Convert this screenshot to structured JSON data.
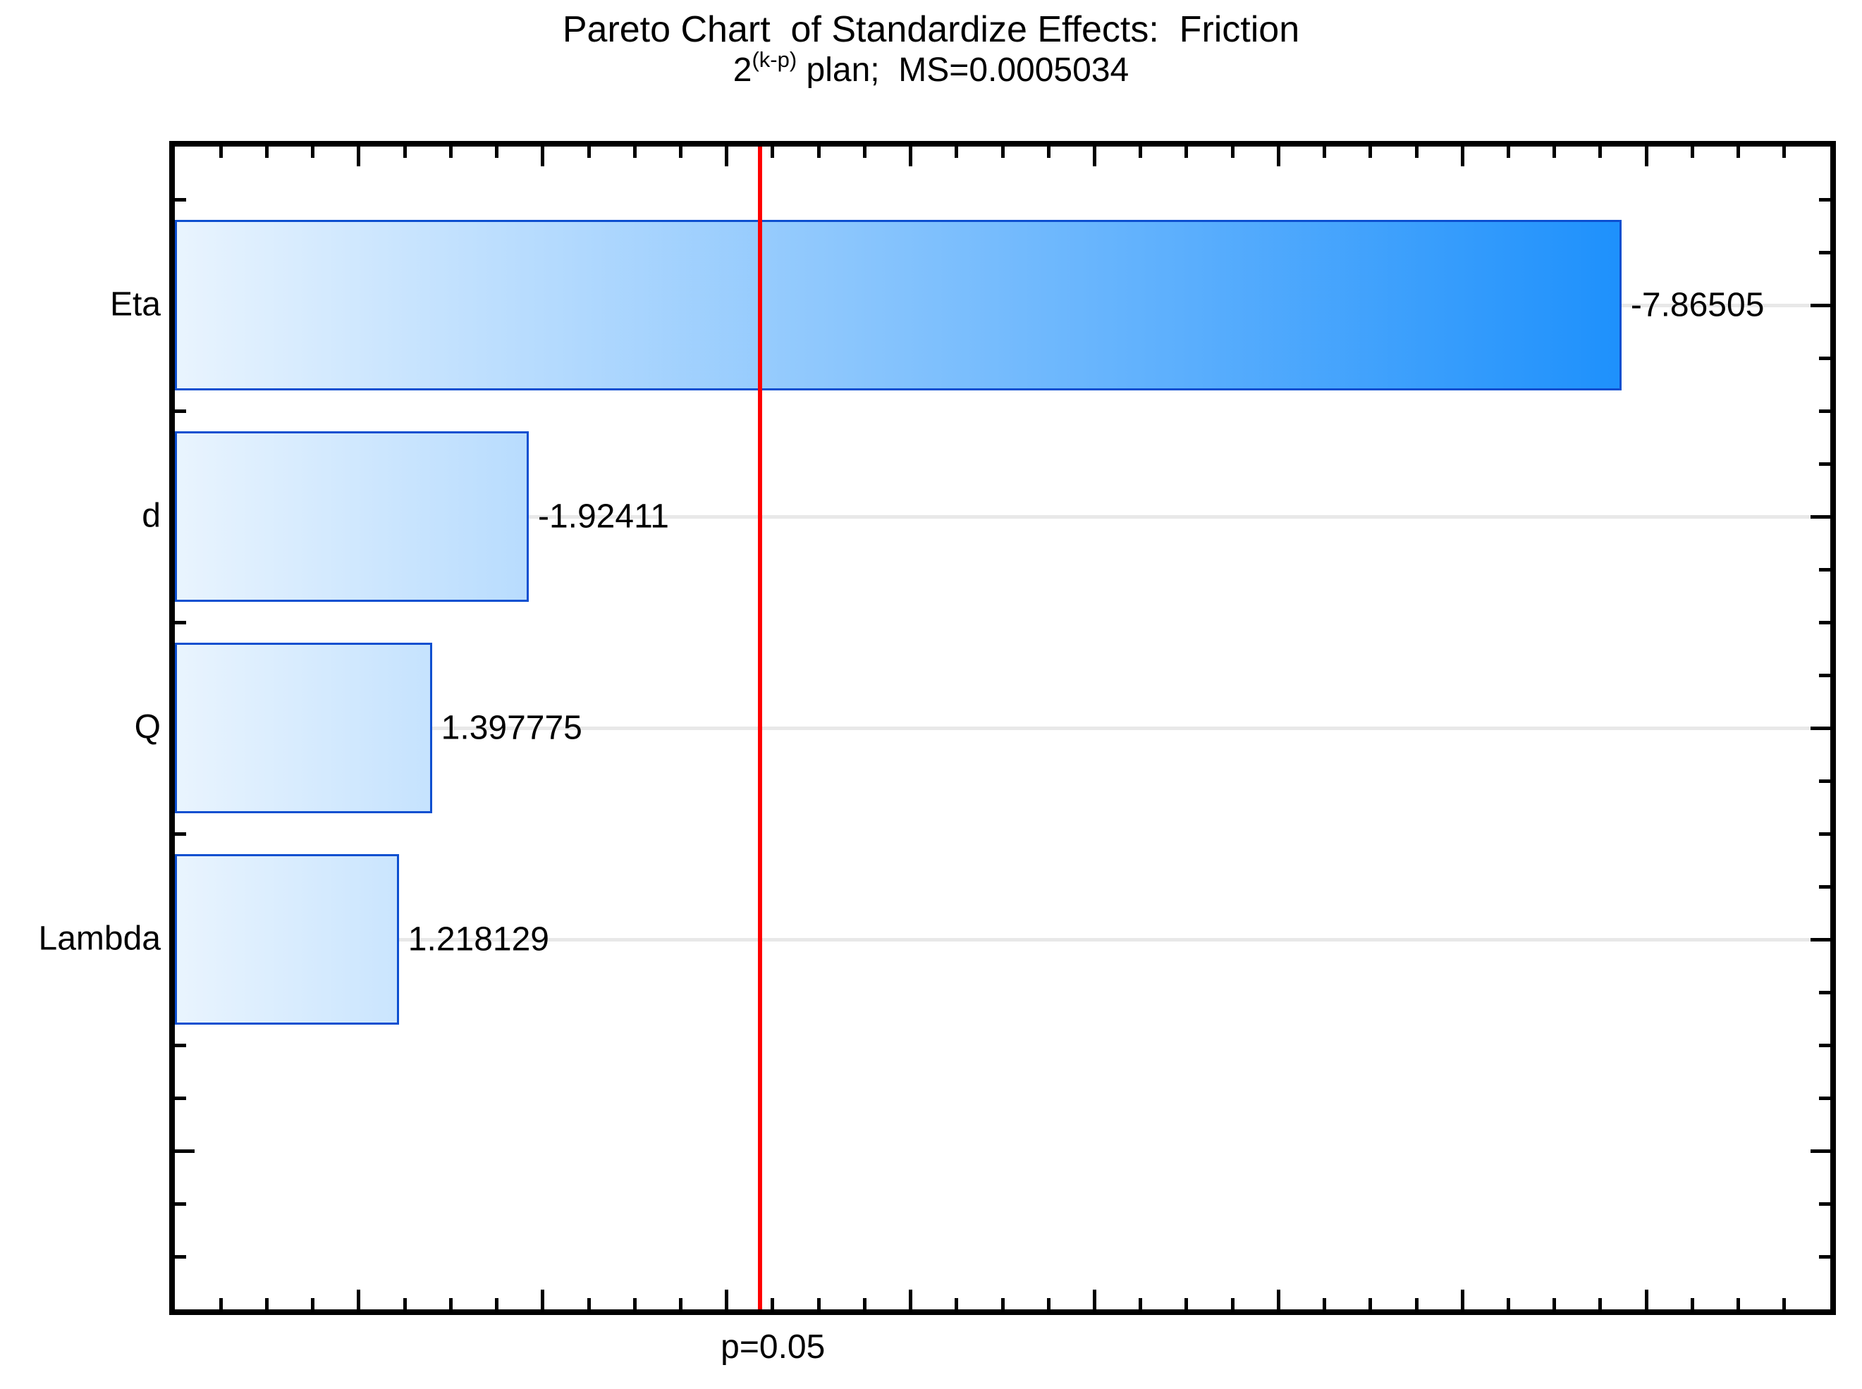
{
  "chart_data": {
    "type": "bar",
    "orientation": "horizontal",
    "title": "Pareto Chart  of Standardize Effects:  Friction",
    "subtitle": {
      "base": "2",
      "sup": "(k-p)",
      "rest": " plan;  MS=0.0005034"
    },
    "categories": [
      "Eta",
      "d",
      "Q",
      "Lambda"
    ],
    "values": [
      -7.86505,
      -1.92411,
      1.397775,
      1.218129
    ],
    "value_labels": [
      "-7.86505",
      "-1.92411",
      "1.397775",
      "1.218129"
    ],
    "xlabel": "",
    "ylabel": "",
    "xlim": [
      0,
      9
    ],
    "x_minor_tick_step": 0.25,
    "x_major_tick_step": 1,
    "y_minor_ticks_per_category": 4,
    "grid": "horizontal-lines-at-category-centers",
    "legend": "none",
    "reference_line": {
      "value": 3.1824,
      "label": "p=0.05",
      "color": "#ff0000"
    },
    "colors": {
      "bar_gradient_start": "#e9f4fe",
      "bar_gradient_end": "#0082fc",
      "bar_border": "#0d4fd0",
      "gridline": "#e8e8e8",
      "axis": "#000000",
      "background": "#ffffff"
    }
  }
}
